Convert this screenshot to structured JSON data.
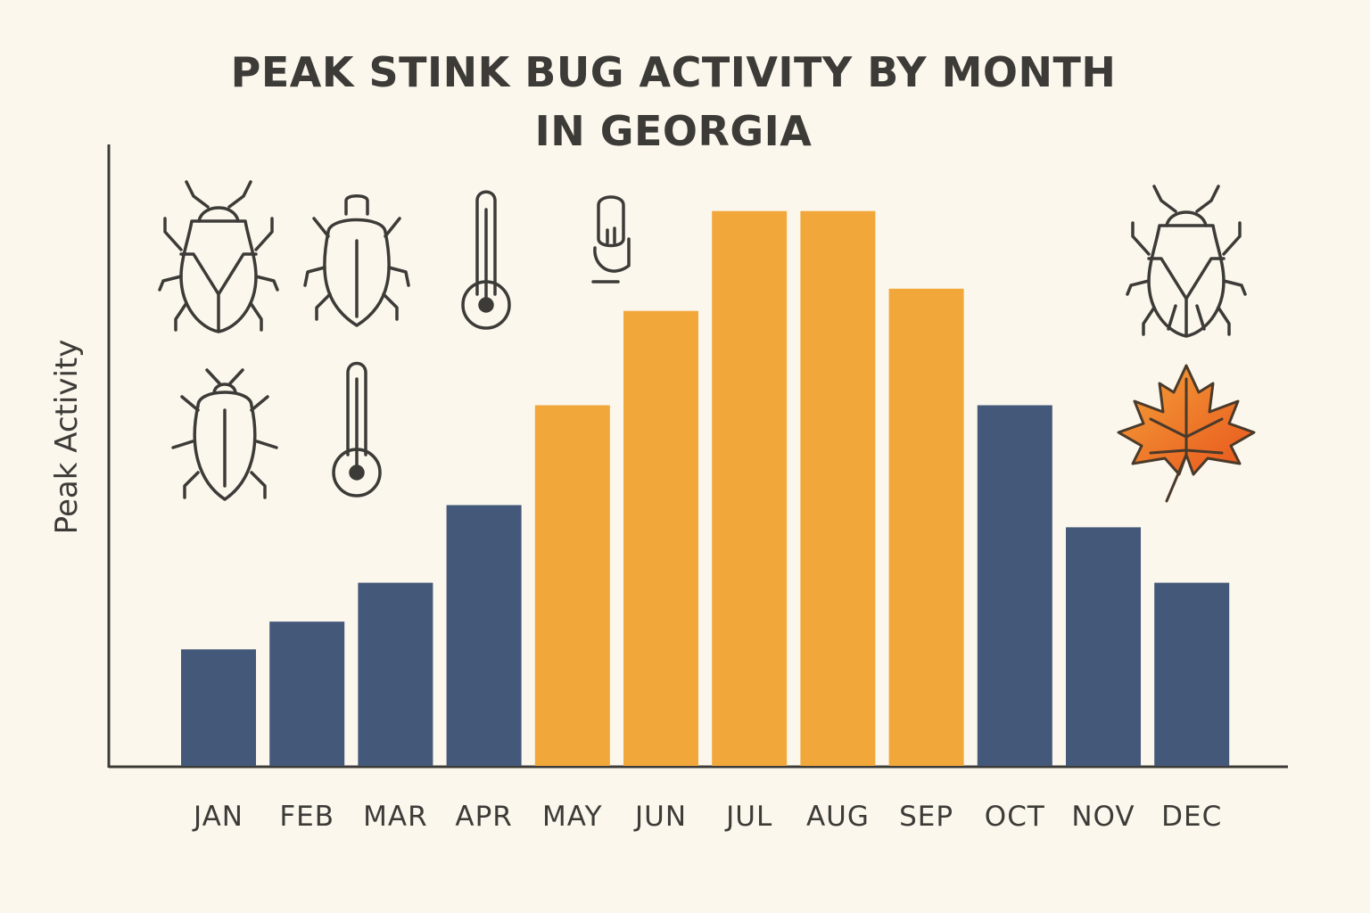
{
  "chart_data": {
    "type": "bar",
    "title_lines": [
      "PEAK STINK BUG ACTIVITY BY MONTH",
      "IN GEORGIA"
    ],
    "xlabel": "",
    "ylabel": "Peak Activity",
    "categories": [
      "JAN",
      "FEB",
      "MAR",
      "APR",
      "MAY",
      "JUN",
      "JUL",
      "AUG",
      "SEP",
      "OCT",
      "NOV",
      "DEC"
    ],
    "values": [
      21,
      26,
      33,
      47,
      65,
      82,
      100,
      100,
      86,
      65,
      43,
      33
    ],
    "ylim": [
      0,
      112
    ],
    "value_scale": "relative, unlabeled axis",
    "peak_months": [
      "MAY",
      "JUN",
      "JUL",
      "AUG",
      "SEP"
    ],
    "grid": false,
    "legend": "none",
    "colors": {
      "off_season": "#44587a",
      "peak_season": "#f2a73b",
      "axis": "#3c3b38",
      "background": "#fcf7ec"
    },
    "decorations": [
      "stink-bug-icon",
      "beetle-icon",
      "thermometer-icon",
      "thermometer-icon",
      "stink-bug-icon",
      "maple-leaf-icon"
    ]
  }
}
